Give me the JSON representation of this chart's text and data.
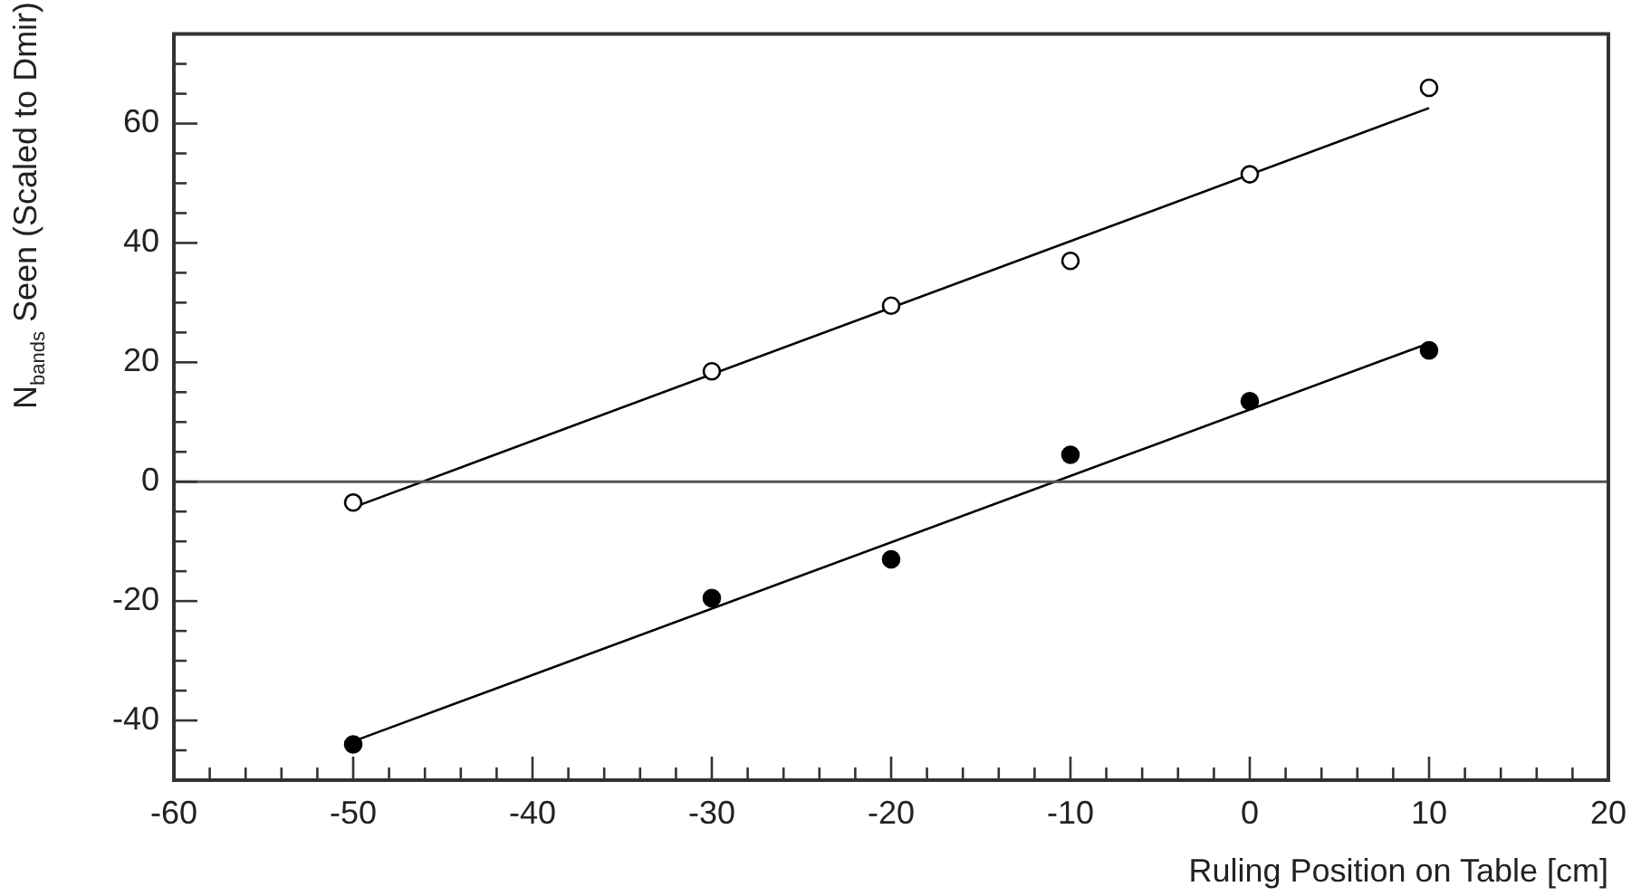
{
  "chart_data": {
    "type": "scatter",
    "xlabel": "Ruling Position on Table [cm]",
    "ylabel": "N$_{bands}$ Seen (Scaled to Dmir)",
    "xlim": [
      -60,
      20
    ],
    "ylim": [
      -50,
      75
    ],
    "xticks": [
      -60,
      {
        "value": -58,
        "label": null
      },
      {
        "value": -56,
        "label": null
      },
      {
        "value": -54,
        "label": null
      },
      {
        "value": -52,
        "label": null
      },
      -50,
      {
        "value": -48,
        "label": null
      },
      {
        "value": -46,
        "label": null
      },
      {
        "value": -44,
        "label": null
      },
      {
        "value": -42,
        "label": null
      },
      -40,
      {
        "value": -38,
        "label": null
      },
      {
        "value": -36,
        "label": null
      },
      {
        "value": -34,
        "label": null
      },
      {
        "value": -32,
        "label": null
      },
      -30,
      {
        "value": -28,
        "label": null
      },
      {
        "value": -26,
        "label": null
      },
      {
        "value": -24,
        "label": null
      },
      {
        "value": -22,
        "label": null
      },
      -20,
      {
        "value": -18,
        "label": null
      },
      {
        "value": -16,
        "label": null
      },
      {
        "value": -14,
        "label": null
      },
      {
        "value": -12,
        "label": null
      },
      -10,
      {
        "value": -8,
        "label": null
      },
      {
        "value": -6,
        "label": null
      },
      {
        "value": -4,
        "label": null
      },
      {
        "value": -2,
        "label": null
      },
      0,
      {
        "value": 2,
        "label": null
      },
      {
        "value": 4,
        "label": null
      },
      {
        "value": 6,
        "label": null
      },
      {
        "value": 8,
        "label": null
      },
      10,
      {
        "value": 12,
        "label": null
      },
      {
        "value": 14,
        "label": null
      },
      {
        "value": 16,
        "label": null
      },
      {
        "value": 18,
        "label": null
      },
      20
    ],
    "yticks": [
      {
        "value": -45,
        "label": null
      },
      -40,
      {
        "value": -35,
        "label": null
      },
      {
        "value": -30,
        "label": null
      },
      {
        "value": -25,
        "label": null
      },
      -20,
      {
        "value": -15,
        "label": null
      },
      {
        "value": -10,
        "label": null
      },
      {
        "value": -5,
        "label": null
      },
      0,
      {
        "value": 5,
        "label": null
      },
      {
        "value": 10,
        "label": null
      },
      {
        "value": 15,
        "label": null
      },
      20,
      {
        "value": 25,
        "label": null
      },
      {
        "value": 30,
        "label": null
      },
      {
        "value": 35,
        "label": null
      },
      40,
      {
        "value": 45,
        "label": null
      },
      {
        "value": 50,
        "label": null
      },
      {
        "value": 55,
        "label": null
      },
      60,
      {
        "value": 65,
        "label": null
      },
      {
        "value": 70,
        "label": null
      }
    ],
    "grid": false,
    "legend": false,
    "ref_lines": [
      {
        "axis": "y",
        "value": 0,
        "color": "#555555"
      }
    ],
    "series": [
      {
        "type": "scatter",
        "marker": "open circle",
        "color": "#000000",
        "x": [
          -50,
          -30,
          -20,
          -10,
          0,
          10
        ],
        "values": [
          -3.5,
          18.5,
          29.5,
          37,
          51.5,
          66
        ]
      },
      {
        "type": "scatter",
        "marker": "circle",
        "color": "#000000",
        "x": [
          -50,
          -30,
          -20,
          -10,
          0,
          10
        ],
        "values": [
          -44,
          -19.5,
          -13,
          4.5,
          13.5,
          22
        ]
      },
      {
        "type": "line",
        "marker": "none",
        "color": "#000000",
        "x": [
          -50,
          10
        ],
        "values": [
          -4.3,
          62.6
        ]
      },
      {
        "type": "line",
        "marker": "none",
        "color": "#000000",
        "x": [
          -50,
          10
        ],
        "values": [
          -43.5,
          23.2
        ]
      }
    ]
  }
}
